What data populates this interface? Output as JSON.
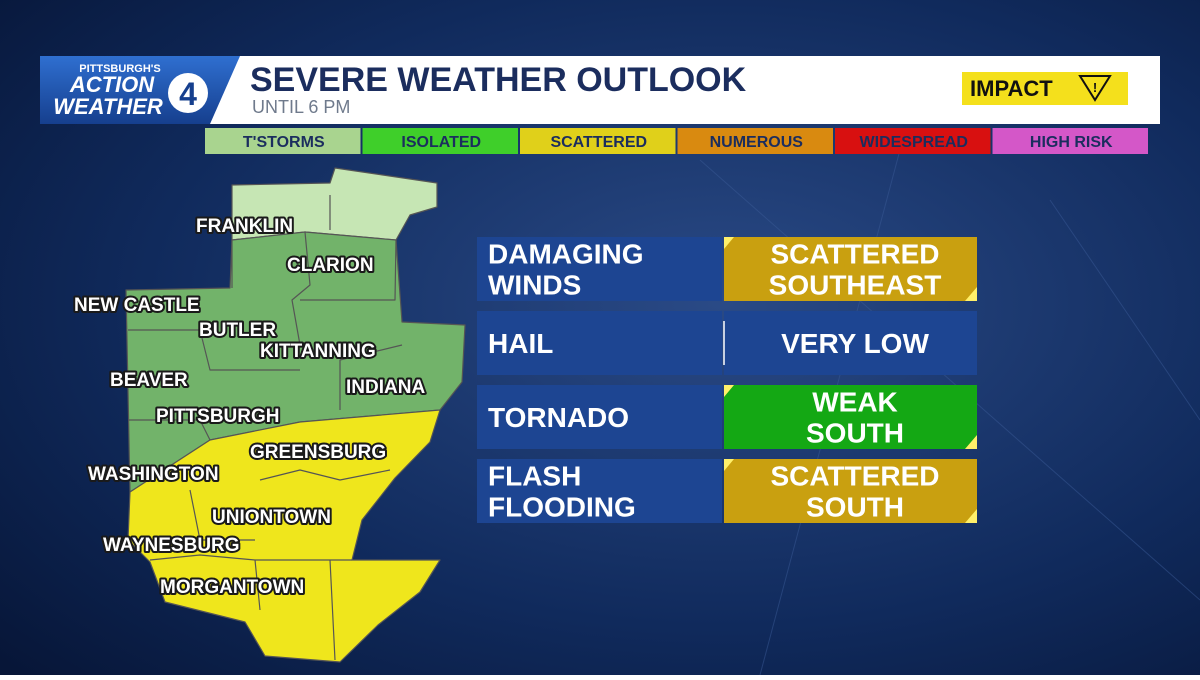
{
  "logo": {
    "line1": "PITTSBURGH'S",
    "line2": "ACTION",
    "line3": "WEATHER",
    "number": "4"
  },
  "header": {
    "title": "SEVERE WEATHER OUTLOOK",
    "subtitle": "UNTIL 6 PM",
    "impact": "IMPACT"
  },
  "legend": [
    {
      "label": "T'STORMS",
      "color": "#a9d48f"
    },
    {
      "label": "ISOLATED",
      "color": "#3fcf2a"
    },
    {
      "label": "SCATTERED",
      "color": "#e0d01a"
    },
    {
      "label": "NUMEROUS",
      "color": "#d98a10"
    },
    {
      "label": "WIDESPREAD",
      "color": "#d81010"
    },
    {
      "label": "HIGH RISK",
      "color": "#d457c8"
    }
  ],
  "map": {
    "labels": [
      "FRANKLIN",
      "CLARION",
      "NEW CASTLE",
      "BUTLER",
      "KITTANNING",
      "BEAVER",
      "INDIANA",
      "PITTSBURGH",
      "GREENSBURG",
      "WASHINGTON",
      "UNIONTOWN",
      "WAYNESBURG",
      "MORGANTOWN"
    ]
  },
  "table": {
    "rows": [
      {
        "hazard": [
          "DAMAGING",
          "WINDS"
        ],
        "level": [
          "SCATTERED",
          "SOUTHEAST"
        ],
        "color": "#c9a010"
      },
      {
        "hazard": [
          "HAIL"
        ],
        "level": [
          "VERY LOW"
        ]
      },
      {
        "hazard": [
          "TORNADO"
        ],
        "level": [
          "WEAK",
          "SOUTH"
        ],
        "color": "#14a814"
      },
      {
        "hazard": [
          "FLASH",
          "FLOODING"
        ],
        "level": [
          "SCATTERED",
          "SOUTH"
        ],
        "color": "#c9a010"
      }
    ]
  }
}
